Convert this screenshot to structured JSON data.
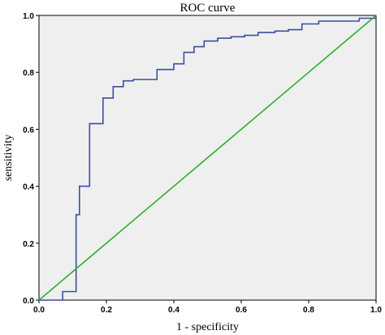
{
  "chart_data": {
    "type": "line",
    "title": "ROC curve",
    "xlabel": "1 - specificity",
    "ylabel": "sensitivity",
    "xlim": [
      0,
      1
    ],
    "ylim": [
      0,
      1
    ],
    "xticks": [
      "0.0",
      "0.2",
      "0.4",
      "0.6",
      "0.8",
      "1.0"
    ],
    "yticks": [
      "0.0",
      "0.2",
      "0.4",
      "0.6",
      "0.8",
      "1.0"
    ],
    "grid": false,
    "series": [
      {
        "color": "#3b4fa0",
        "x": [
          0.0,
          0.07,
          0.07,
          0.11,
          0.11,
          0.12,
          0.12,
          0.15,
          0.15,
          0.19,
          0.19,
          0.22,
          0.22,
          0.25,
          0.25,
          0.28,
          0.28,
          0.35,
          0.35,
          0.37,
          0.37,
          0.4,
          0.4,
          0.43,
          0.43,
          0.46,
          0.46,
          0.49,
          0.49,
          0.53,
          0.53,
          0.57,
          0.57,
          0.61,
          0.61,
          0.65,
          0.65,
          0.7,
          0.7,
          0.74,
          0.74,
          0.78,
          0.78,
          0.83,
          0.83,
          0.95,
          0.95,
          1.0
        ],
        "y": [
          0.0,
          0.0,
          0.03,
          0.03,
          0.3,
          0.3,
          0.4,
          0.4,
          0.62,
          0.62,
          0.71,
          0.71,
          0.75,
          0.75,
          0.77,
          0.77,
          0.775,
          0.775,
          0.81,
          0.81,
          0.81,
          0.81,
          0.83,
          0.83,
          0.87,
          0.87,
          0.89,
          0.89,
          0.91,
          0.91,
          0.92,
          0.92,
          0.925,
          0.925,
          0.93,
          0.93,
          0.94,
          0.94,
          0.945,
          0.945,
          0.95,
          0.95,
          0.97,
          0.97,
          0.98,
          0.98,
          0.99,
          0.99
        ]
      },
      {
        "color": "#2db02d",
        "x": [
          0,
          1
        ],
        "y": [
          0,
          1
        ]
      }
    ]
  }
}
